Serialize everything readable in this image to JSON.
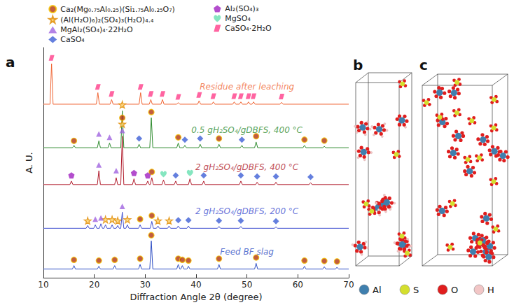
{
  "chart_data": {
    "type": "line",
    "panel_label": "a",
    "x_label": "Diffraction Angle 2θ (degree)",
    "y_label": "A. U.",
    "xlim": [
      10,
      70
    ],
    "xticks": [
      10,
      20,
      30,
      40,
      50,
      60,
      70
    ],
    "ylim": [
      0,
      100
    ],
    "yticks": [],
    "tick_labels": "x",
    "grid": false,
    "legend": "upper left",
    "series": [
      {
        "name": "Residue after leaching",
        "type": "line",
        "color": "#f06432",
        "x": [
          10,
          11.3,
          11.6,
          11.9,
          20.4,
          20.7,
          21.0,
          23.1,
          23.4,
          23.7,
          28.8,
          29.1,
          29.4,
          30.8,
          31.1,
          31.4,
          33.1,
          33.4,
          33.7,
          36.2,
          36.5,
          36.8,
          40.3,
          40.6,
          40.9,
          43.1,
          43.4,
          43.7,
          47.2,
          47.5,
          47.8,
          48.5,
          48.8,
          49.1,
          50.0,
          50.3,
          50.6,
          51.0,
          51.3,
          51.6,
          56.5,
          56.8,
          57.1,
          70
        ],
        "values": [
          75.4,
          75.4,
          93.0,
          75.4,
          75.4,
          80.4,
          75.4,
          75.4,
          77.4,
          75.4,
          75.4,
          80.4,
          75.4,
          75.4,
          77.4,
          75.4,
          75.4,
          77.4,
          75.4,
          75.4,
          76.1,
          75.4,
          75.4,
          76.9,
          75.4,
          75.4,
          76.4,
          75.4,
          75.4,
          76.4,
          75.4,
          75.4,
          76.4,
          75.4,
          75.4,
          76.4,
          75.4,
          75.4,
          76.4,
          75.4,
          75.4,
          76.2,
          75.4,
          75.4
        ]
      },
      {
        "name": "0.5 gH₂SO₄/gDBFS, 400 °C",
        "type": "line",
        "color": "#2e8b2e",
        "x": [
          10,
          15.7,
          16,
          16.3,
          20.6,
          20.9,
          21.2,
          22.7,
          23,
          23.3,
          25.2,
          25.5,
          25.8,
          28.5,
          28.8,
          29.1,
          30.9,
          31.2,
          31.5,
          36.2,
          36.5,
          36.8,
          37.5,
          37.8,
          38.1,
          40.5,
          40.8,
          41.1,
          44.2,
          44.5,
          44.8,
          48.7,
          49,
          49.3,
          51.5,
          51.8,
          52.1,
          61.0,
          61.3,
          61.6,
          64.9,
          65.2,
          65.5,
          70
        ],
        "values": [
          56.5,
          56.5,
          57.5,
          56.5,
          56.5,
          59.5,
          56.5,
          56.5,
          58.5,
          56.5,
          56.5,
          72.5,
          56.5,
          56.5,
          58.0,
          56.5,
          56.5,
          69.5,
          56.5,
          56.5,
          58.5,
          56.5,
          56.5,
          57.5,
          56.5,
          56.5,
          58.0,
          56.5,
          56.5,
          58.0,
          56.5,
          56.5,
          57.5,
          56.5,
          56.5,
          59.0,
          56.5,
          56.5,
          57.5,
          56.5,
          56.5,
          57.1,
          56.5,
          56.5
        ]
      },
      {
        "name": "2 gH₂SO₄/gDBFS, 400 °C",
        "type": "line",
        "color": "#b01a2a",
        "x": [
          10,
          15.2,
          15.5,
          15.8,
          20.6,
          20.9,
          21.2,
          24.0,
          24.3,
          24.6,
          25.2,
          25.5,
          25.8,
          27.5,
          27.8,
          28.1,
          30.2,
          30.5,
          30.8,
          31.0,
          31.3,
          31.6,
          33.3,
          33.6,
          33.9,
          35.7,
          36,
          36.3,
          38.5,
          38.8,
          39.1,
          41.2,
          41.5,
          41.8,
          48.5,
          48.8,
          49.1,
          51.7,
          52,
          52.3,
          55.4,
          55.7,
          56.0,
          62.2,
          62.5,
          62.8,
          70
        ],
        "values": [
          40.5,
          40.5,
          42.0,
          40.5,
          40.5,
          46.5,
          40.5,
          40.5,
          43.5,
          40.5,
          40.5,
          61.5,
          40.5,
          40.5,
          43.0,
          40.5,
          40.5,
          42.0,
          40.5,
          40.5,
          43.5,
          40.5,
          40.5,
          42.5,
          40.5,
          40.5,
          42.0,
          40.5,
          40.5,
          43.0,
          40.5,
          40.5,
          42.0,
          40.5,
          40.5,
          42.0,
          40.5,
          40.5,
          41.5,
          40.5,
          40.5,
          41.5,
          40.5,
          40.5,
          41.3,
          40.5,
          40.5
        ]
      },
      {
        "name": "2 gH₂SO₄/gDBFS, 200 °C",
        "type": "line",
        "color": "#4050d0",
        "x": [
          10,
          18.4,
          18.7,
          19.0,
          19.9,
          20.2,
          20.5,
          21.0,
          21.3,
          21.6,
          21.9,
          22.2,
          22.5,
          23.2,
          23.5,
          23.8,
          24.3,
          24.6,
          24.9,
          25.2,
          25.5,
          25.8,
          26.2,
          26.5,
          26.8,
          28.7,
          29,
          29.3,
          31.0,
          31.3,
          31.6,
          32.2,
          32.5,
          32.8,
          34.4,
          34.7,
          35.0,
          36.2,
          36.5,
          36.8,
          38.2,
          38.5,
          38.8,
          44.2,
          44.5,
          44.8,
          48.5,
          48.8,
          49.1,
          55.4,
          55.7,
          56.0,
          70
        ],
        "values": [
          21.5,
          21.5,
          22.7,
          21.5,
          21.5,
          23.0,
          21.5,
          21.5,
          23.5,
          21.5,
          21.5,
          23.0,
          21.5,
          21.5,
          23.0,
          21.5,
          21.5,
          22.7,
          21.5,
          21.5,
          28.5,
          21.5,
          21.5,
          23.0,
          21.5,
          21.5,
          23.0,
          21.5,
          21.5,
          24.5,
          21.5,
          21.5,
          22.5,
          21.5,
          21.5,
          22.5,
          21.5,
          21.5,
          22.5,
          21.5,
          21.5,
          22.5,
          21.5,
          21.5,
          22.3,
          21.5,
          21.5,
          22.3,
          21.5,
          21.5,
          22.1,
          21.5,
          21.5
        ]
      },
      {
        "name": "Feed BF slag",
        "type": "line",
        "color": "#2f4fc4",
        "x": [
          10,
          15.7,
          16,
          16.3,
          20.6,
          20.9,
          21.2,
          23.7,
          24,
          24.3,
          28.7,
          29,
          29.3,
          30.9,
          31.2,
          31.5,
          36.2,
          36.5,
          36.8,
          37.0,
          37.3,
          37.6,
          38.2,
          38.5,
          38.8,
          44.2,
          44.5,
          44.8,
          51.5,
          51.8,
          52.1,
          61.0,
          61.3,
          61.6,
          64.9,
          65.2,
          65.5,
          67.4,
          67.7,
          68.0,
          70
        ],
        "values": [
          3.8,
          3.8,
          5.3,
          3.8,
          3.8,
          5.0,
          3.8,
          3.8,
          5.3,
          3.8,
          3.8,
          5.8,
          3.8,
          3.8,
          16.0,
          3.8,
          3.8,
          5.8,
          3.8,
          3.8,
          5.3,
          3.8,
          3.8,
          5.0,
          3.8,
          3.8,
          5.8,
          3.8,
          3.8,
          6.3,
          3.8,
          3.8,
          5.0,
          3.8,
          3.8,
          4.8,
          3.8,
          3.8,
          4.6,
          3.8,
          3.8
        ]
      },
      {
        "name": "Ca₂(Mg₀.₇₅Al₀.₂₅)(Si₁.₇₅Al₀.₂₅O₇)",
        "type": "scatter",
        "marker": "circle",
        "color": "#b3340f",
        "x": [
          16,
          20.9,
          24,
          29,
          31.2,
          36.5,
          37.3,
          38.5,
          44.5,
          51.8,
          61.3,
          65.2,
          67.7,
          29,
          31.3,
          25.5,
          31.3,
          16,
          31.2,
          36.5,
          44.5,
          51.8,
          61.3,
          65.2
        ],
        "values": [
          7.8,
          7.5,
          7.8,
          8.3,
          18.5,
          8.3,
          7.8,
          7.5,
          8.3,
          8.8,
          7.5,
          7.3,
          7.1,
          25.5,
          27,
          69.5,
          46,
          59.5,
          72,
          61,
          60.5,
          61.5,
          60,
          59.6
        ]
      },
      {
        "name": "(Al(H₂O)₆)₂(SO₄)₃(H₂O)₄.₄",
        "type": "scatter",
        "marker": "star",
        "color": "#fcd36b",
        "x": [
          18.7,
          22.2,
          23.5,
          24.6,
          26.5,
          32.5,
          34.7,
          25.5,
          25.5
        ],
        "values": [
          24.8,
          25.3,
          25.3,
          24.8,
          25.3,
          24.8,
          24.8,
          66.8,
          75.2
        ]
      },
      {
        "name": "MgAl₂(SO₄)₄·22H₂O",
        "type": "scatter",
        "marker": "triangle",
        "color": "#a064e0",
        "x": [
          20.2,
          21.3,
          25.5,
          20.9,
          24.3,
          25.5,
          20.9,
          23
        ],
        "values": [
          25.5,
          26,
          31,
          49,
          46.5,
          64,
          62.5,
          61
        ]
      },
      {
        "name": "CaSO₄",
        "type": "scatter",
        "marker": "diamond",
        "color": "#3d5fd6",
        "x": [
          36.5,
          38.5,
          44.5,
          48.8,
          55.7,
          36,
          41.5,
          48.8,
          52,
          55.7,
          62.5,
          28.8,
          37.8,
          40.8,
          49
        ],
        "values": [
          25,
          25,
          24.8,
          24.8,
          24.6,
          44.5,
          44.5,
          44.5,
          44,
          44,
          43.8,
          60.5,
          60,
          60.5,
          60
        ]
      },
      {
        "name": "Al₂(SO₄)₃",
        "type": "scatter",
        "marker": "pentagon",
        "color": "#a020c0",
        "x": [
          15.5,
          27.8,
          30.5
        ],
        "values": [
          44.5,
          45.5,
          44.5
        ]
      },
      {
        "name": "MgSO₄",
        "type": "scatter",
        "marker": "heart",
        "color": "#66e0b0",
        "x": [
          33.6,
          38.8
        ],
        "values": [
          45,
          45.5
        ]
      },
      {
        "name": "CaSO₄·2H₂O",
        "type": "scatter",
        "marker": "parallelogram",
        "color": "#ff3d8a",
        "x": [
          11.6,
          20.7,
          23.4,
          29.1,
          31.1,
          33.4,
          36.5,
          40.6,
          43.4,
          47.5,
          48.8,
          50.3,
          51.3,
          56.8
        ],
        "values": [
          95.5,
          82.9,
          79.9,
          82.9,
          79.9,
          79.9,
          78.6,
          79.4,
          78.9,
          78.9,
          78.9,
          78.9,
          78.9,
          78.7
        ]
      }
    ]
  },
  "diagrams": [
    {
      "label": "b"
    },
    {
      "label": "c"
    }
  ],
  "atom_legend": [
    {
      "label": "Al",
      "color": "#3f7fae"
    },
    {
      "label": "S",
      "color": "#d4df2e"
    },
    {
      "label": "O",
      "color": "#e01e1e"
    },
    {
      "label": "H",
      "color": "#f2c6c6"
    }
  ]
}
